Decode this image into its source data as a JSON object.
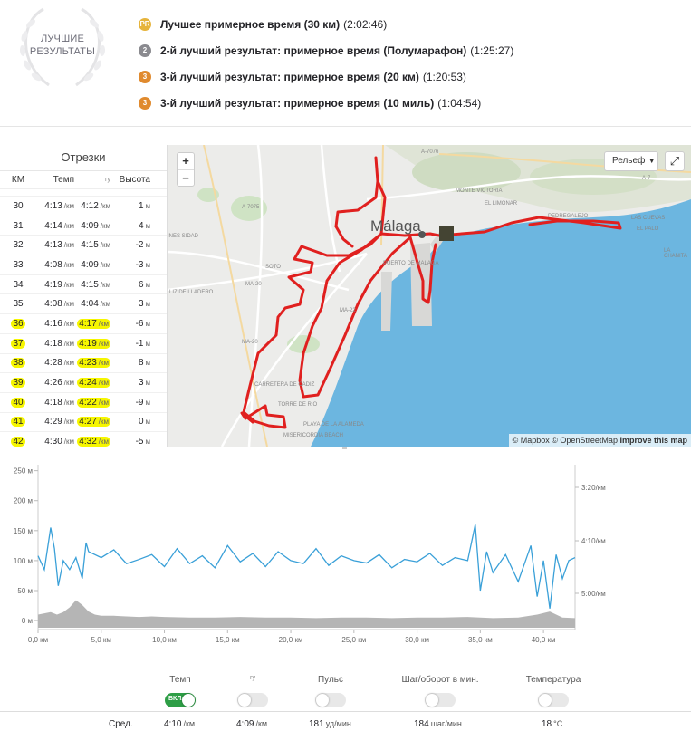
{
  "best_efforts": {
    "badge_line1": "ЛУЧШИЕ",
    "badge_line2": "РЕЗУЛЬТАТЫ",
    "items": [
      {
        "medal": "gold",
        "medal_text": "PR",
        "name": "Лучшее примерное время (30 км)",
        "time": "(2:02:46)"
      },
      {
        "medal": "silver",
        "medal_text": "2",
        "name": "2-й лучший результат: примерное время (Полумарафон)",
        "time": "(1:25:27)"
      },
      {
        "medal": "bronze",
        "medal_text": "3",
        "name": "3-й лучший результат: примерное время (20 км)",
        "time": "(1:20:53)"
      },
      {
        "medal": "bronze",
        "medal_text": "3",
        "name": "3-й лучший результат: примерное время (10 миль)",
        "time": "(1:04:54)"
      }
    ]
  },
  "splits": {
    "title": "Отрезки",
    "headers": {
      "km": "КМ",
      "pace": "Темп",
      "gap": "гу",
      "elev": "Высота"
    },
    "pace_unit": "/км",
    "elev_unit": "м",
    "rows": [
      {
        "km": "30",
        "pace": "4:13",
        "gap": "4:12",
        "elev": "1",
        "hl": false
      },
      {
        "km": "31",
        "pace": "4:14",
        "gap": "4:09",
        "elev": "4",
        "hl": false
      },
      {
        "km": "32",
        "pace": "4:13",
        "gap": "4:15",
        "elev": "-2",
        "hl": false
      },
      {
        "km": "33",
        "pace": "4:08",
        "gap": "4:09",
        "elev": "-3",
        "hl": false
      },
      {
        "km": "34",
        "pace": "4:19",
        "gap": "4:15",
        "elev": "6",
        "hl": false
      },
      {
        "km": "35",
        "pace": "4:08",
        "gap": "4:04",
        "elev": "3",
        "hl": false
      },
      {
        "km": "36",
        "pace": "4:16",
        "gap": "4:17",
        "elev": "-6",
        "hl": true
      },
      {
        "km": "37",
        "pace": "4:18",
        "gap": "4:19",
        "elev": "-1",
        "hl": true
      },
      {
        "km": "38",
        "pace": "4:28",
        "gap": "4:23",
        "elev": "8",
        "hl": true
      },
      {
        "km": "39",
        "pace": "4:26",
        "gap": "4:24",
        "elev": "3",
        "hl": true
      },
      {
        "km": "40",
        "pace": "4:18",
        "gap": "4:22",
        "elev": "-9",
        "hl": true
      },
      {
        "km": "41",
        "pace": "4:29",
        "gap": "4:27",
        "elev": "0",
        "hl": true
      },
      {
        "km": "42",
        "pace": "4:30",
        "gap": "4:32",
        "elev": "-5",
        "hl": true
      }
    ]
  },
  "map": {
    "city": "Málaga",
    "layer_label": "Рельеф",
    "attribution": "© Mapbox © OpenStreetMap",
    "improve_link": "Improve this map",
    "labels": [
      "A-7076",
      "A-7075",
      "MA-20",
      "MA-22",
      "MA-20",
      "A-7",
      "MONTE VICTORIA",
      "EL LIMONAR",
      "PEDREGALEJO",
      "LAS CUEVAS",
      "EL PALO",
      "LA CHANITA",
      "INES SIDAD",
      "SOTO",
      "LIZ DE LLADERO",
      "CARRETERA DE CADIZ",
      "TORRE DE RIO",
      "PLAYA DE LA ALAMEDA",
      "MISERICORDIA BEACH",
      "PUERTO DE MALAGA"
    ]
  },
  "chart_data": {
    "type": "line",
    "xlabel": "",
    "x_ticks": [
      "0,0 км",
      "5,0 км",
      "10,0 км",
      "15,0 км",
      "20,0 км",
      "25,0 км",
      "30,0 км",
      "35,0 км",
      "40,0 км"
    ],
    "x_range_km": [
      0,
      42.5
    ],
    "y_left_ticks": [
      "250 м",
      "200 м",
      "150 м",
      "100 м",
      "50 м",
      "0 м"
    ],
    "y_left_range_m": [
      -15,
      260
    ],
    "y_right_ticks": [
      "3:20/км",
      "4:10/км",
      "5:00/км"
    ],
    "series": [
      {
        "kind": "area",
        "color": "#b5b5b5",
        "x": [
          0,
          0.5,
          1,
          1.5,
          2,
          2.5,
          3,
          3.5,
          4,
          4.5,
          5,
          6,
          7,
          8,
          9,
          10,
          12,
          14,
          16,
          18,
          20,
          22,
          24,
          26,
          28,
          30,
          32,
          34,
          36,
          38,
          39.5,
          40.5,
          41.5,
          42.5
        ],
        "y": [
          10,
          12,
          14,
          10,
          14,
          22,
          34,
          26,
          15,
          10,
          8,
          8,
          7,
          6,
          7,
          6,
          5,
          5,
          6,
          5,
          5,
          4,
          5,
          5,
          4,
          5,
          5,
          6,
          4,
          5,
          10,
          15,
          5,
          4
        ]
      },
      {
        "kind": "line",
        "color": "#3aa0d8",
        "x": [
          0,
          0.5,
          1,
          1.3,
          1.6,
          2,
          2.5,
          3,
          3.5,
          3.8,
          4,
          5,
          6,
          7,
          8,
          9,
          10,
          11,
          12,
          13,
          14,
          15,
          16,
          17,
          18,
          19,
          20,
          21,
          22,
          23,
          24,
          25,
          26,
          27,
          28,
          29,
          30,
          31,
          32,
          33,
          34,
          34.6,
          35,
          35.5,
          36,
          37,
          38,
          39,
          39.5,
          40,
          40.5,
          41,
          41.5,
          42,
          42.5
        ],
        "y": [
          108,
          85,
          155,
          120,
          58,
          100,
          85,
          105,
          70,
          130,
          115,
          105,
          118,
          95,
          102,
          110,
          90,
          120,
          95,
          108,
          88,
          125,
          98,
          112,
          90,
          115,
          100,
          95,
          120,
          92,
          108,
          100,
          96,
          110,
          88,
          102,
          98,
          112,
          92,
          105,
          100,
          160,
          50,
          115,
          80,
          110,
          65,
          125,
          40,
          100,
          20,
          110,
          70,
          100,
          105
        ]
      }
    ]
  },
  "controls": [
    {
      "label": "Темп",
      "state": "on",
      "on_text": "ВКЛ."
    },
    {
      "label": "гу",
      "state": "off",
      "on_text": ""
    },
    {
      "label": "Пульс",
      "state": "off",
      "on_text": ""
    },
    {
      "label": "Шаг/оборот в мин.",
      "state": "off",
      "on_text": ""
    },
    {
      "label": "Температура",
      "state": "off",
      "on_text": ""
    }
  ],
  "averages": {
    "label": "Сред.",
    "pace": "4:10",
    "pace_unit": "/км",
    "gap": "4:09",
    "gap_unit": "/км",
    "hr": "181",
    "hr_unit": "уд/мин",
    "cadence": "184",
    "cadence_unit": "шаг/мин",
    "temp": "18",
    "temp_unit": "°C"
  },
  "colors": {
    "route": "#e0201f",
    "water": "#6cb6e0",
    "land": "#ececea",
    "pace_line": "#3aa0d8",
    "elevation": "#b5b5b5",
    "toggle_on": "#2e9e46",
    "highlight": "#f6f600"
  }
}
